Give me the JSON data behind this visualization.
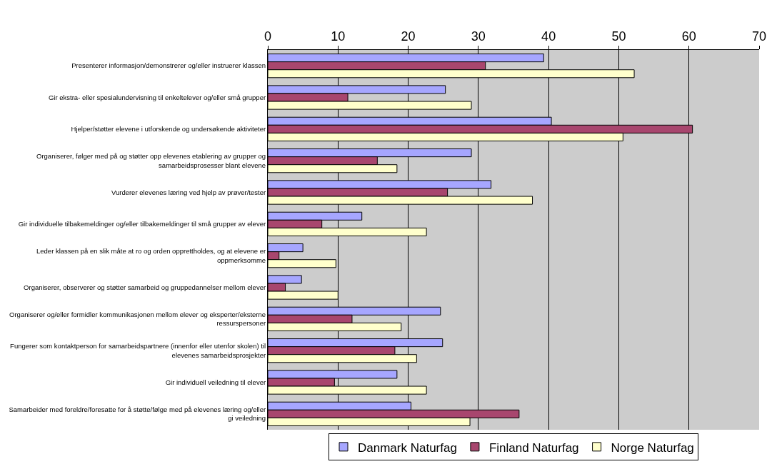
{
  "chart_data": {
    "type": "bar",
    "orientation": "horizontal",
    "categories": [
      "Presenterer informasjon/demonstrerer og/eller instruerer klassen",
      "Gir ekstra- eller spesialundervisning til enkeltelever og/eller små grupper",
      "Hjelper/støtter elevene i utforskende og undersøkende aktiviteter",
      "Organiserer, følger med på og støtter opp elevenes etablering av grupper og samarbeidsprosesser blant elevene",
      "Vurderer elevenes læring ved hjelp av prøver/tester",
      "Gir individuelle tilbakemeldinger og/eller tilbakemeldinger til små grupper av elever",
      "Leder klassen på en slik måte at ro og orden opprettholdes, og at elevene er oppmerksomme",
      "Organiserer, observerer og støtter samarbeid og gruppedannelser mellom elever",
      "Organiserer og/eller formidler kommunikasjonen mellom elever og eksperter/eksterne ressurspersoner",
      "Fungerer som kontaktperson for samarbeidspartnere (innenfor eller utenfor skolen) til elevenes samarbeidsprosjekter",
      "Gir individuell veiledning til elever",
      "Samarbeider med foreldre/foresatte for å støtte/følge med på elevenes læring og/eller gi veiledning"
    ],
    "series": [
      {
        "name": "Danmark Naturfag",
        "color": "#a6a6ff",
        "values": [
          39.3,
          25.3,
          40.4,
          29.0,
          31.8,
          13.4,
          5.0,
          4.8,
          24.6,
          24.9,
          18.4,
          20.4
        ]
      },
      {
        "name": "Finland Naturfag",
        "color": "#a8466e",
        "values": [
          31.0,
          11.4,
          60.5,
          15.6,
          25.6,
          7.7,
          1.6,
          2.5,
          12.0,
          18.1,
          9.5,
          35.8
        ]
      },
      {
        "name": "Norge Naturfag",
        "color": "#ffffcc",
        "values": [
          52.2,
          29.0,
          50.6,
          18.4,
          37.7,
          22.6,
          9.7,
          10.0,
          19.0,
          21.2,
          22.6,
          28.8
        ]
      }
    ],
    "xlim": [
      0,
      70
    ],
    "xticks": [
      0,
      10,
      20,
      30,
      40,
      50,
      60,
      70
    ],
    "grid": "x",
    "legend": "bottom"
  }
}
